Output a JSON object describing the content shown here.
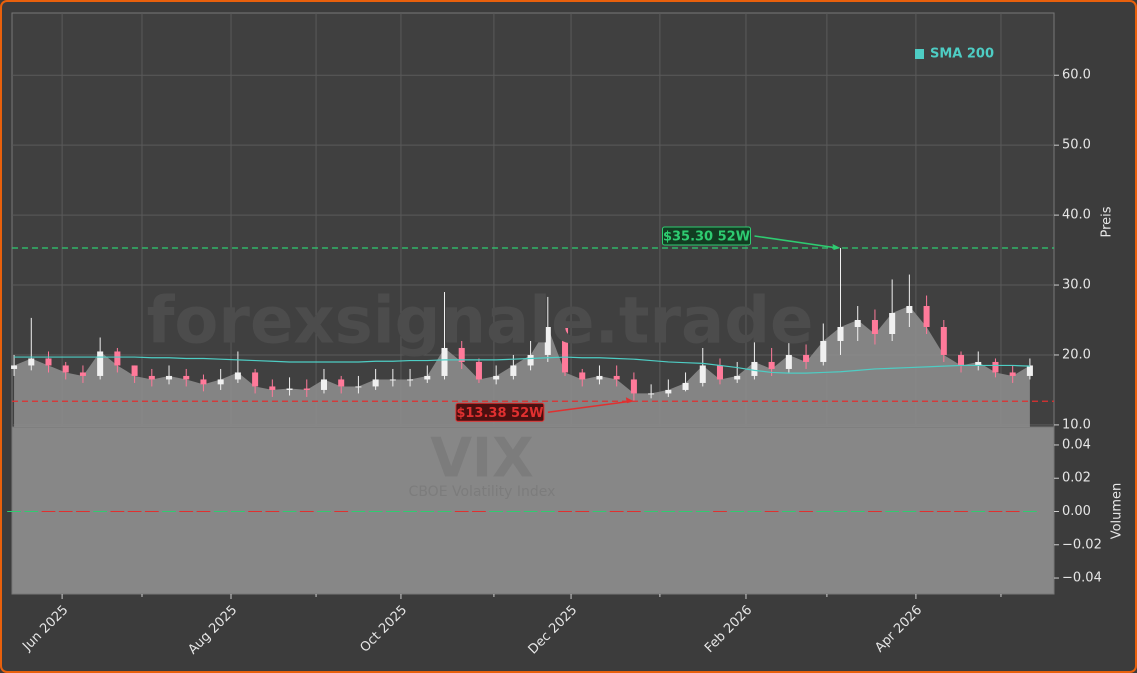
{
  "chart_data": [
    {
      "type": "candlestick",
      "watermark": "forexsignale.trade",
      "symbol": "VIX",
      "symbol_name": "CBOE Volatility Index",
      "ylabel": "Preis",
      "ylim": [
        9.7,
        68.9
      ],
      "yticks": [
        {
          "value": 10,
          "label": "10.0"
        },
        {
          "value": 20,
          "label": "20.0"
        },
        {
          "value": 30,
          "label": "30.0"
        },
        {
          "value": 40,
          "label": "40.0"
        },
        {
          "value": 50,
          "label": "50.0"
        },
        {
          "value": 60,
          "label": "60.0"
        }
      ],
      "xlim": [
        -0.12,
        60.4
      ],
      "xticks": [
        {
          "value": 2.79,
          "label": "Jun 2025"
        },
        {
          "value": 12.6,
          "label": "Aug 2025"
        },
        {
          "value": 22.47,
          "label": "Oct 2025"
        },
        {
          "value": 32.35,
          "label": "Dec 2025"
        },
        {
          "value": 42.51,
          "label": "Feb 2026"
        },
        {
          "value": 52.38,
          "label": "Apr 2026"
        }
      ],
      "minor_xticks": [
        7.43,
        17.54,
        27.87,
        37.51,
        47.21,
        57.32
      ],
      "grid": true,
      "legend": "upper right",
      "area_color": "#8c8c8c",
      "series": [
        {
          "name": "VIX",
          "up_color": "#f0f0f0",
          "down_color": "#ff7a9a",
          "open": [
            18,
            18.5,
            19.5,
            18.5,
            17.5,
            17,
            20.5,
            18.5,
            17,
            16.5,
            17,
            16.5,
            15.8,
            16.5,
            17.5,
            15.5,
            15,
            15.2,
            15,
            16.5,
            15.5,
            15.5,
            16.5,
            16.5,
            16.5,
            17,
            21,
            19,
            16.5,
            17,
            18.5,
            20,
            24,
            17.5,
            16.5,
            17,
            16.5,
            14.5,
            14.5,
            15,
            16,
            18.5,
            16.5,
            17,
            19,
            18,
            20,
            19,
            22,
            24,
            25,
            23,
            26,
            27,
            24,
            20,
            18.5,
            19,
            17.5,
            17
          ],
          "high": [
            20,
            25.3,
            20.5,
            19,
            18.5,
            22.5,
            21,
            18.5,
            18,
            18.5,
            18,
            17.2,
            18,
            20.5,
            18,
            16.5,
            16.8,
            16.5,
            18,
            17,
            17,
            18,
            18,
            18,
            18.5,
            29,
            22,
            19.5,
            18.5,
            20,
            22,
            28.3,
            25,
            18,
            18.5,
            18.5,
            17.5,
            15.8,
            16.5,
            17.5,
            21,
            19.5,
            19,
            22.5,
            21,
            22.5,
            21.5,
            24.5,
            35.3,
            27,
            26.5,
            30.8,
            31.5,
            28.5,
            25,
            20.5,
            20.5,
            19.5,
            18.5,
            19.5
          ],
          "low": [
            17,
            17.8,
            17.5,
            16.5,
            16,
            16.5,
            17.5,
            16,
            15.5,
            15.8,
            15.5,
            14.8,
            15,
            16,
            14.5,
            14,
            14.2,
            14,
            14.5,
            14.5,
            14.5,
            15,
            15.5,
            15.5,
            16,
            16.5,
            18,
            16,
            15.8,
            16.5,
            17.8,
            19,
            17,
            15.5,
            15.8,
            15.5,
            13.38,
            13.8,
            14,
            14.8,
            15.5,
            15.8,
            16,
            16.5,
            17,
            17.5,
            18,
            18.5,
            20,
            22,
            21.5,
            22,
            24,
            23,
            19,
            17.5,
            17.8,
            16.8,
            16,
            16.5
          ],
          "close": [
            18.5,
            19.5,
            18.5,
            17.5,
            17,
            20.5,
            18.5,
            17,
            16.5,
            17,
            16.5,
            15.8,
            16.5,
            17.5,
            15.5,
            15,
            15.2,
            15,
            16.5,
            15.5,
            15.5,
            16.5,
            16.5,
            16.5,
            17,
            21,
            19,
            16.5,
            17,
            18.5,
            20,
            24,
            17.5,
            16.5,
            17,
            16.5,
            14.5,
            14.5,
            15,
            16,
            18.5,
            16.5,
            17,
            19,
            18,
            20,
            19,
            22,
            24,
            25,
            23,
            26,
            27,
            24,
            20,
            18.5,
            19,
            17.5,
            17,
            18.5
          ]
        }
      ],
      "overlays": [
        {
          "name": "SMA 200",
          "color": "#4ecdc4",
          "values": [
            19.7,
            19.7,
            19.7,
            19.7,
            19.7,
            19.7,
            19.7,
            19.7,
            19.6,
            19.6,
            19.5,
            19.5,
            19.4,
            19.3,
            19.2,
            19.1,
            19.0,
            19.0,
            19.0,
            19.0,
            19.0,
            19.1,
            19.1,
            19.2,
            19.2,
            19.3,
            19.3,
            19.3,
            19.3,
            19.4,
            19.5,
            19.6,
            19.7,
            19.6,
            19.6,
            19.5,
            19.4,
            19.2,
            19.0,
            18.9,
            18.8,
            18.5,
            18.2,
            17.8,
            17.5,
            17.4,
            17.4,
            17.5,
            17.6,
            17.8,
            18.0,
            18.1,
            18.2,
            18.3,
            18.4,
            18.5,
            18.5,
            18.5,
            18.5,
            18.4
          ]
        }
      ],
      "reference_lines": [
        {
          "value": 35.3,
          "label": "$35.30 52W",
          "color": "#2ecc71",
          "label_bg": "#123d22"
        },
        {
          "value": 13.38,
          "label": "$13.38 52W",
          "color": "#e03030",
          "label_bg": "#4a1010"
        }
      ]
    },
    {
      "type": "bar",
      "ylabel": "Volumen",
      "ylim": [
        -0.0496,
        0.0508
      ],
      "yticks": [
        {
          "value": 0.04,
          "label": "0.04"
        },
        {
          "value": 0.02,
          "label": "0.02"
        },
        {
          "value": 0,
          "label": "0.00"
        },
        {
          "value": -0.02,
          "label": "−0.02"
        },
        {
          "value": -0.04,
          "label": "−0.04"
        }
      ],
      "up_color": "#2ecc71",
      "down_color": "#e03030",
      "values": [
        0,
        0,
        0,
        0,
        0,
        0,
        0,
        0,
        0,
        0,
        0,
        0,
        0,
        0,
        0,
        0,
        0,
        0,
        0,
        0,
        0,
        0,
        0,
        0,
        0,
        0,
        0,
        0,
        0,
        0,
        0,
        0,
        0,
        0,
        0,
        0,
        0,
        0,
        0,
        0,
        0,
        0,
        0,
        0,
        0,
        0,
        0,
        0,
        0,
        0,
        0,
        0,
        0,
        0,
        0,
        0,
        0,
        0,
        0,
        0
      ]
    }
  ]
}
